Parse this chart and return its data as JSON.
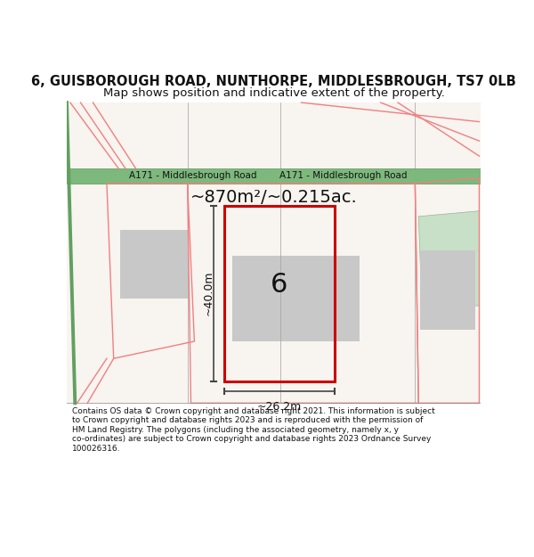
{
  "title": "6, GUISBOROUGH ROAD, NUNTHORPE, MIDDLESBROUGH, TS7 0LB",
  "subtitle": "Map shows position and indicative extent of the property.",
  "area_text": "~870m²/~0.215ac.",
  "width_label": "~26.2m",
  "height_label": "~40.0m",
  "number_label": "6",
  "road_label_left": "A171 - Middlesbrough Road",
  "road_label_right": "A171 - Middlesbrough Road",
  "footer_lines": [
    "Contains OS data © Crown copyright and database right 2021. This information is subject",
    "to Crown copyright and database rights 2023 and is reproduced with the permission of",
    "HM Land Registry. The polygons (including the associated geometry, namely x, y",
    "co-ordinates) are subject to Crown copyright and database rights 2023 Ordnance Survey",
    "100026316."
  ],
  "bg_color": "#ffffff",
  "map_bg_color": "#f8f4f0",
  "road_fill": "#7db87d",
  "road_stroke": "#5a9a5a",
  "pink_stroke": "#f08080",
  "red_stroke": "#cc0000",
  "gray_fill": "#c8c8c8",
  "green_fill": "#c8dfc8",
  "green_line": "#60a060",
  "dark_line": "#444444",
  "grid_line": "#a0a0a0"
}
